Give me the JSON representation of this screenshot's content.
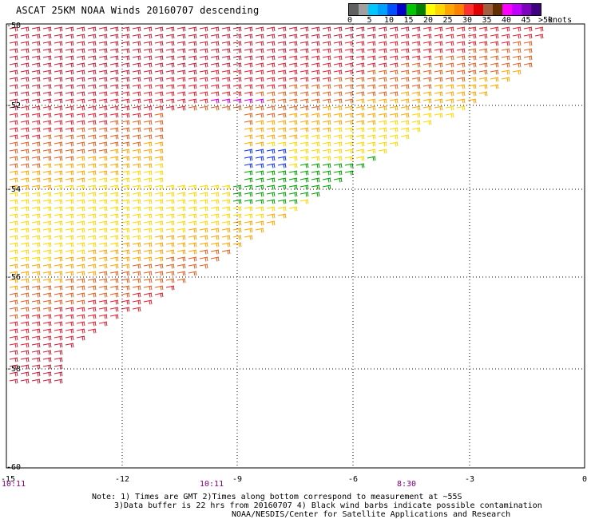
{
  "header": {
    "title": "ASCAT 25KM NOAA Winds 20160707 descending"
  },
  "colorbar": {
    "colors": [
      "#606060",
      "#a0a0a0",
      "#00c8ff",
      "#00a0ff",
      "#0050ff",
      "#0000c8",
      "#00c800",
      "#008000",
      "#ffff00",
      "#ffd700",
      "#ffa500",
      "#ff7f00",
      "#ff3030",
      "#e00000",
      "#a06040",
      "#603000",
      "#ff00ff",
      "#c000ff",
      "#8000c0",
      "#400080"
    ],
    "ticks": [
      "0",
      "5",
      "10",
      "15",
      "20",
      "25",
      "30",
      "35",
      "40",
      "45",
      ">50"
    ],
    "unit": "knots"
  },
  "axes": {
    "lat_labels": [
      "-50",
      "-52",
      "-54",
      "-56",
      "-58",
      "-60"
    ],
    "lon_labels": [
      "-15",
      "-12",
      "-9",
      "-6",
      "-3",
      "0"
    ]
  },
  "times": [
    "10:11",
    "10:11",
    "8:30"
  ],
  "notes": {
    "line1": "Note: 1) Times are GMT 2)Times along bottom correspond to measurement at ~55S",
    "line2": "3)Data buffer is 22 hrs from 20160707 4) Black wind barbs indicate possible contamination",
    "line3": "NOAA/NESDIS/Center for Satellite Applications and Research"
  }
}
